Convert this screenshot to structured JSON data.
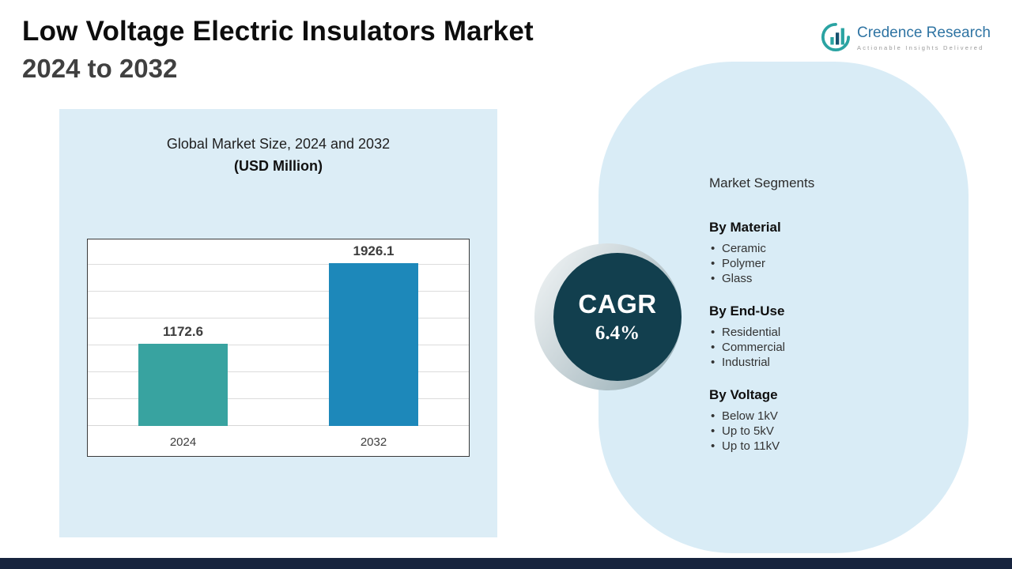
{
  "header": {
    "title_line1": "Low Voltage Electric Insulators Market",
    "title_line2": "2024 to 2032"
  },
  "logo": {
    "name": "Credence Research",
    "tagline": "Actionable Insights Delivered"
  },
  "chart_panel": {
    "title_line1": "Global Market Size, 2024 and 2032",
    "title_line2": "(USD Million)"
  },
  "chart_data": {
    "type": "bar",
    "title": "Global Market Size, 2024 and 2032",
    "subtitle": "(USD Million)",
    "categories": [
      "2024",
      "2032"
    ],
    "values": [
      1172.6,
      1926.1
    ],
    "colors": [
      "#38a3a0",
      "#1d88ba"
    ],
    "unit": "USD Million",
    "grid": true,
    "legend": false,
    "y_axis_tick_labels_visible": false
  },
  "cagr": {
    "label": "CAGR",
    "value": "6.4%"
  },
  "segments": {
    "heading": "Market Segments",
    "groups": [
      {
        "title": "By Material",
        "items": [
          "Ceramic",
          "Polymer",
          "Glass"
        ]
      },
      {
        "title": "By End-Use",
        "items": [
          "Residential",
          "Commercial",
          "Industrial"
        ]
      },
      {
        "title": "By Voltage",
        "items": [
          "Below 1kV",
          "Up to 5kV",
          "Up to 11kV"
        ]
      }
    ]
  },
  "theme": {
    "panel_blue": "#dcedf6",
    "capsule_blue": "#d9ecf6",
    "bar_2024_teal": "#38a3a0",
    "bar_2032_blue": "#1d88ba",
    "cagr_circle": "#123f4e",
    "footer_navy": "#17243e",
    "logo_blue": "#2f74a3"
  }
}
